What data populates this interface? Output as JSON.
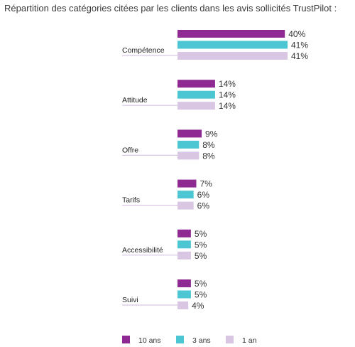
{
  "chart_data": {
    "type": "bar",
    "orientation": "horizontal",
    "title": "Répartition des catégories citées par les clients dans les avis sollicités TrustPilot :",
    "categories": [
      "Compétence",
      "Attitude",
      "Offre",
      "Tarifs",
      "Accessibilité",
      "Suivi"
    ],
    "series": [
      {
        "name": "10 ans",
        "color": "#8e2a91",
        "values": [
          40,
          14,
          9,
          7,
          5,
          5
        ]
      },
      {
        "name": "3 ans",
        "color": "#4cc6d3",
        "values": [
          41,
          14,
          8,
          6,
          5,
          5
        ]
      },
      {
        "name": "1 an",
        "color": "#d9c6e3",
        "values": [
          41,
          14,
          8,
          6,
          5,
          4
        ]
      }
    ],
    "value_labels": [
      [
        "40%",
        "14%",
        "9%",
        "7%",
        "5%",
        "5%"
      ],
      [
        "41%",
        "14%",
        "8%",
        "6%",
        "5%",
        "5%"
      ],
      [
        "41%",
        "14%",
        "8%",
        "6%",
        "5%",
        "4%"
      ]
    ],
    "xlim": [
      0,
      41
    ],
    "grid": false,
    "legend": "bottom"
  }
}
